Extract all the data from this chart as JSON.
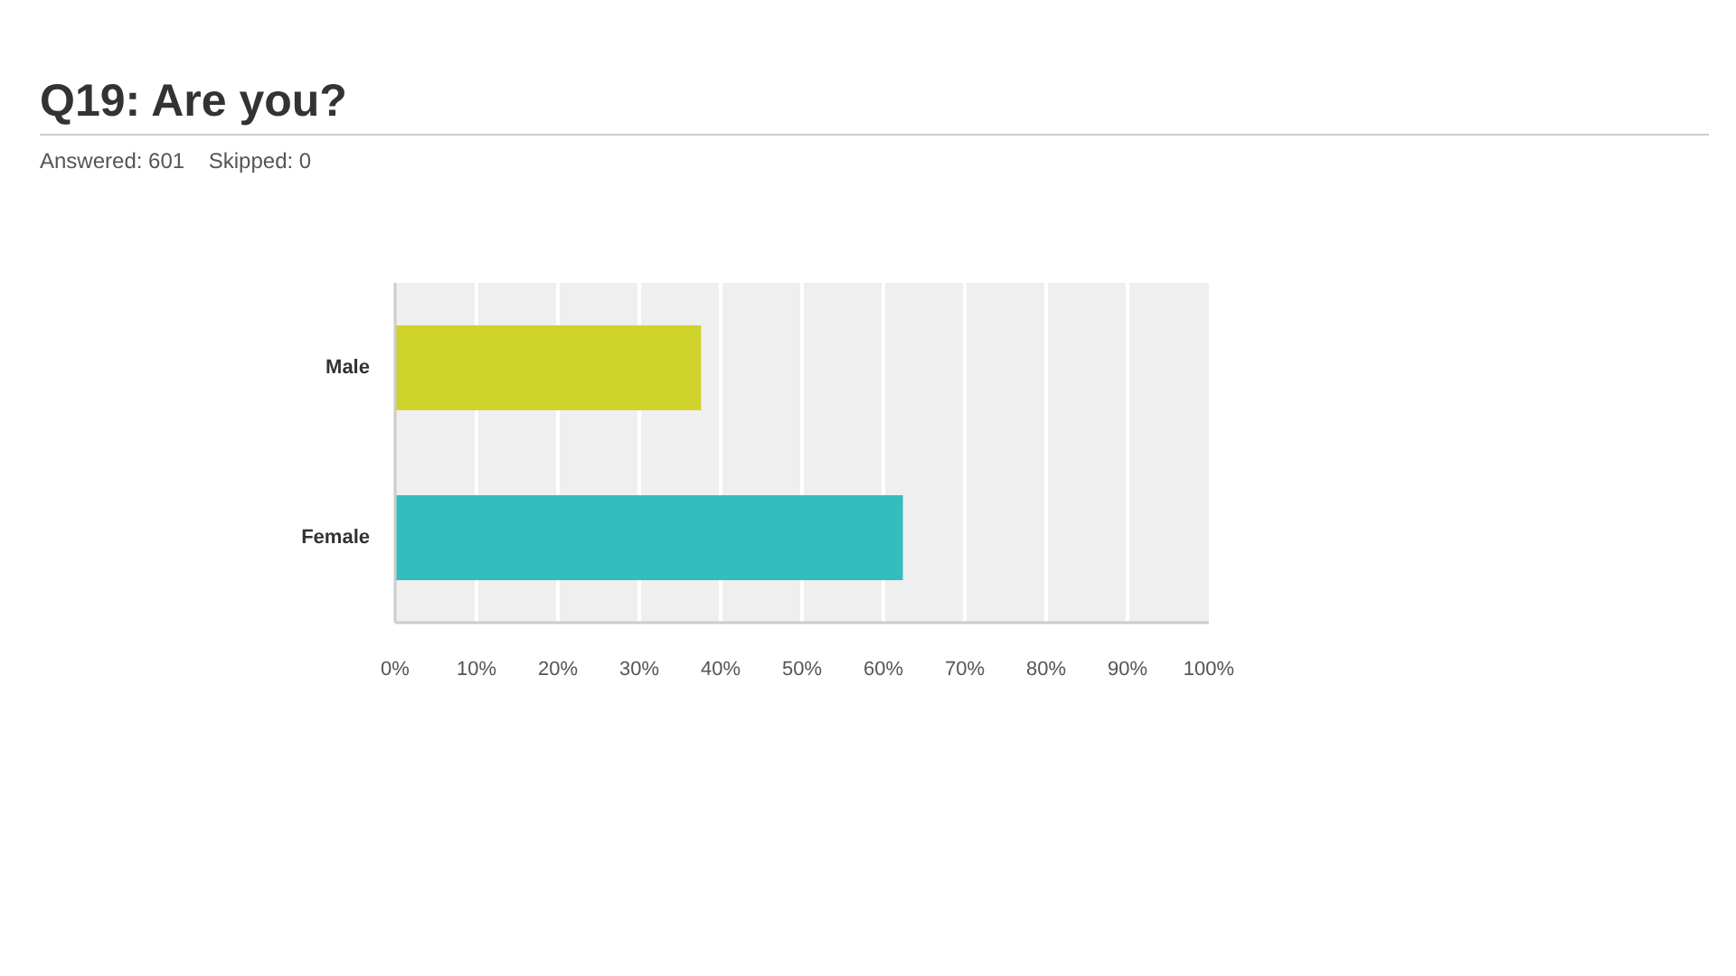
{
  "chart_data": {
    "type": "bar",
    "orientation": "horizontal",
    "title": "Q19: Are you?",
    "subtitle": "Answered: 601    Skipped: 0",
    "categories": [
      "Male",
      "Female"
    ],
    "values": [
      37.6,
      62.4
    ],
    "colors": [
      "#d0d42a",
      "#33bdbe"
    ],
    "xlim": [
      0,
      100
    ],
    "xticks": [
      {
        "value": 0,
        "label": "0%"
      },
      {
        "value": 10,
        "label": "10%"
      },
      {
        "value": 20,
        "label": "20%"
      },
      {
        "value": 30,
        "label": "30%"
      },
      {
        "value": 40,
        "label": "40%"
      },
      {
        "value": 50,
        "label": "50%"
      },
      {
        "value": 60,
        "label": "60%"
      },
      {
        "value": 70,
        "label": "70%"
      },
      {
        "value": 80,
        "label": "80%"
      },
      {
        "value": 90,
        "label": "90%"
      },
      {
        "value": 100,
        "label": "100%"
      }
    ],
    "grid": "x"
  }
}
